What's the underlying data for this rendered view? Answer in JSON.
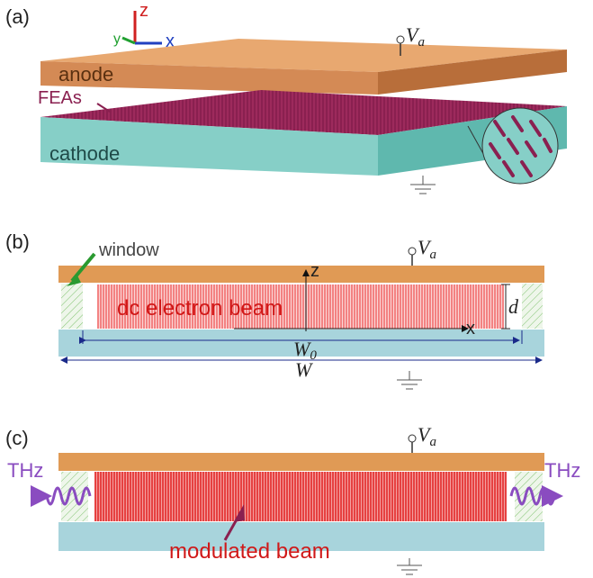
{
  "panels": [
    {
      "label": "(a)",
      "axes": {
        "z": "z",
        "y": "y",
        "x": "x"
      },
      "voltage": {
        "symbol": "V",
        "subscript": "a"
      },
      "anode": "anode",
      "emitters": "FEAs",
      "cathode": "cathode"
    },
    {
      "label": "(b)",
      "window": "window",
      "axes": {
        "z": "z",
        "x": "x"
      },
      "voltage": {
        "symbol": "V",
        "subscript": "a"
      },
      "beam": "dc electron beam",
      "gap": "d",
      "emitter_width": {
        "symbol": "W",
        "subscript": "0"
      },
      "width": "W"
    },
    {
      "label": "(c)",
      "voltage": {
        "symbol": "V",
        "subscript": "a"
      },
      "output_left": "THz",
      "output_right": "THz",
      "beam": "modulated beam"
    }
  ]
}
